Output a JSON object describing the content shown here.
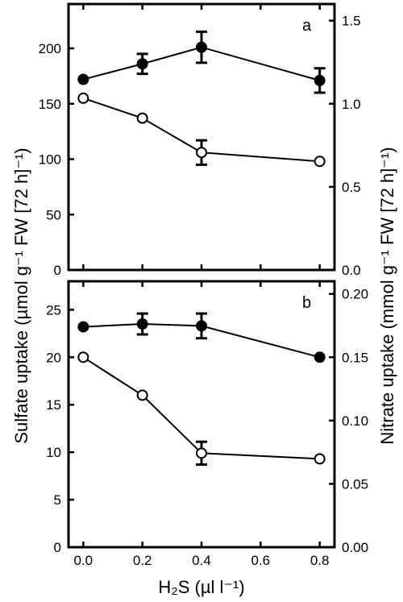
{
  "chart_data": [
    {
      "type": "line",
      "panel_label": "a",
      "x": [
        0.0,
        0.2,
        0.4,
        0.8
      ],
      "xlim": [
        -0.05,
        0.85
      ],
      "xticks": [
        0.0,
        0.2,
        0.4,
        0.6,
        0.8
      ],
      "ylim_left": [
        0,
        240
      ],
      "yticks_left": [
        0,
        50,
        100,
        150,
        200
      ],
      "ylim_right": [
        0,
        1.6
      ],
      "yticks_right": [
        0.0,
        0.5,
        1.0,
        1.5
      ],
      "grid": false,
      "series": [
        {
          "marker": "filled-circle",
          "axis": "left",
          "values": [
            172,
            186,
            201,
            171
          ],
          "errors": [
            0,
            9,
            14,
            11
          ]
        },
        {
          "marker": "open-circle",
          "axis": "left",
          "values": [
            155,
            137,
            106,
            98
          ],
          "errors": [
            0,
            0,
            11,
            0
          ]
        }
      ]
    },
    {
      "type": "line",
      "panel_label": "b",
      "x": [
        0.0,
        0.2,
        0.4,
        0.8
      ],
      "xlim": [
        -0.05,
        0.85
      ],
      "xticks": [
        0.0,
        0.2,
        0.4,
        0.6,
        0.8
      ],
      "ylim_left": [
        0,
        28
      ],
      "yticks_left": [
        0,
        5,
        10,
        15,
        20,
        25
      ],
      "ylim_right": [
        0,
        0.21
      ],
      "yticks_right": [
        0.0,
        0.05,
        0.1,
        0.15,
        0.2
      ],
      "grid": false,
      "series": [
        {
          "marker": "filled-circle",
          "axis": "left",
          "values": [
            23.2,
            23.5,
            23.3,
            20.0
          ],
          "errors": [
            0,
            1.1,
            1.3,
            0
          ]
        },
        {
          "marker": "open-circle",
          "axis": "left",
          "values": [
            20.0,
            16.0,
            9.9,
            9.3
          ],
          "errors": [
            0,
            0,
            1.2,
            0
          ]
        }
      ]
    }
  ],
  "labels": {
    "ylabel_left": "Sulfate uptake (µmol g⁻¹ FW  [72 h]⁻¹)",
    "ylabel_right": "Nitrate uptake (mmol g⁻¹ FW  [72 h]⁻¹)",
    "xlabel": "H₂S (µl l⁻¹)",
    "xtick_labels": [
      "0.0",
      "0.2",
      "0.4",
      "0.6",
      "0.8"
    ],
    "a": {
      "left_ticks": [
        "0",
        "50",
        "100",
        "150",
        "200"
      ],
      "right_ticks": [
        "0.0",
        "0.5",
        "1.0",
        "1.5"
      ]
    },
    "b": {
      "left_ticks": [
        "0",
        "5",
        "10",
        "15",
        "20",
        "25"
      ],
      "right_ticks": [
        "0.00",
        "0.05",
        "0.10",
        "0.15",
        "0.20"
      ]
    }
  }
}
